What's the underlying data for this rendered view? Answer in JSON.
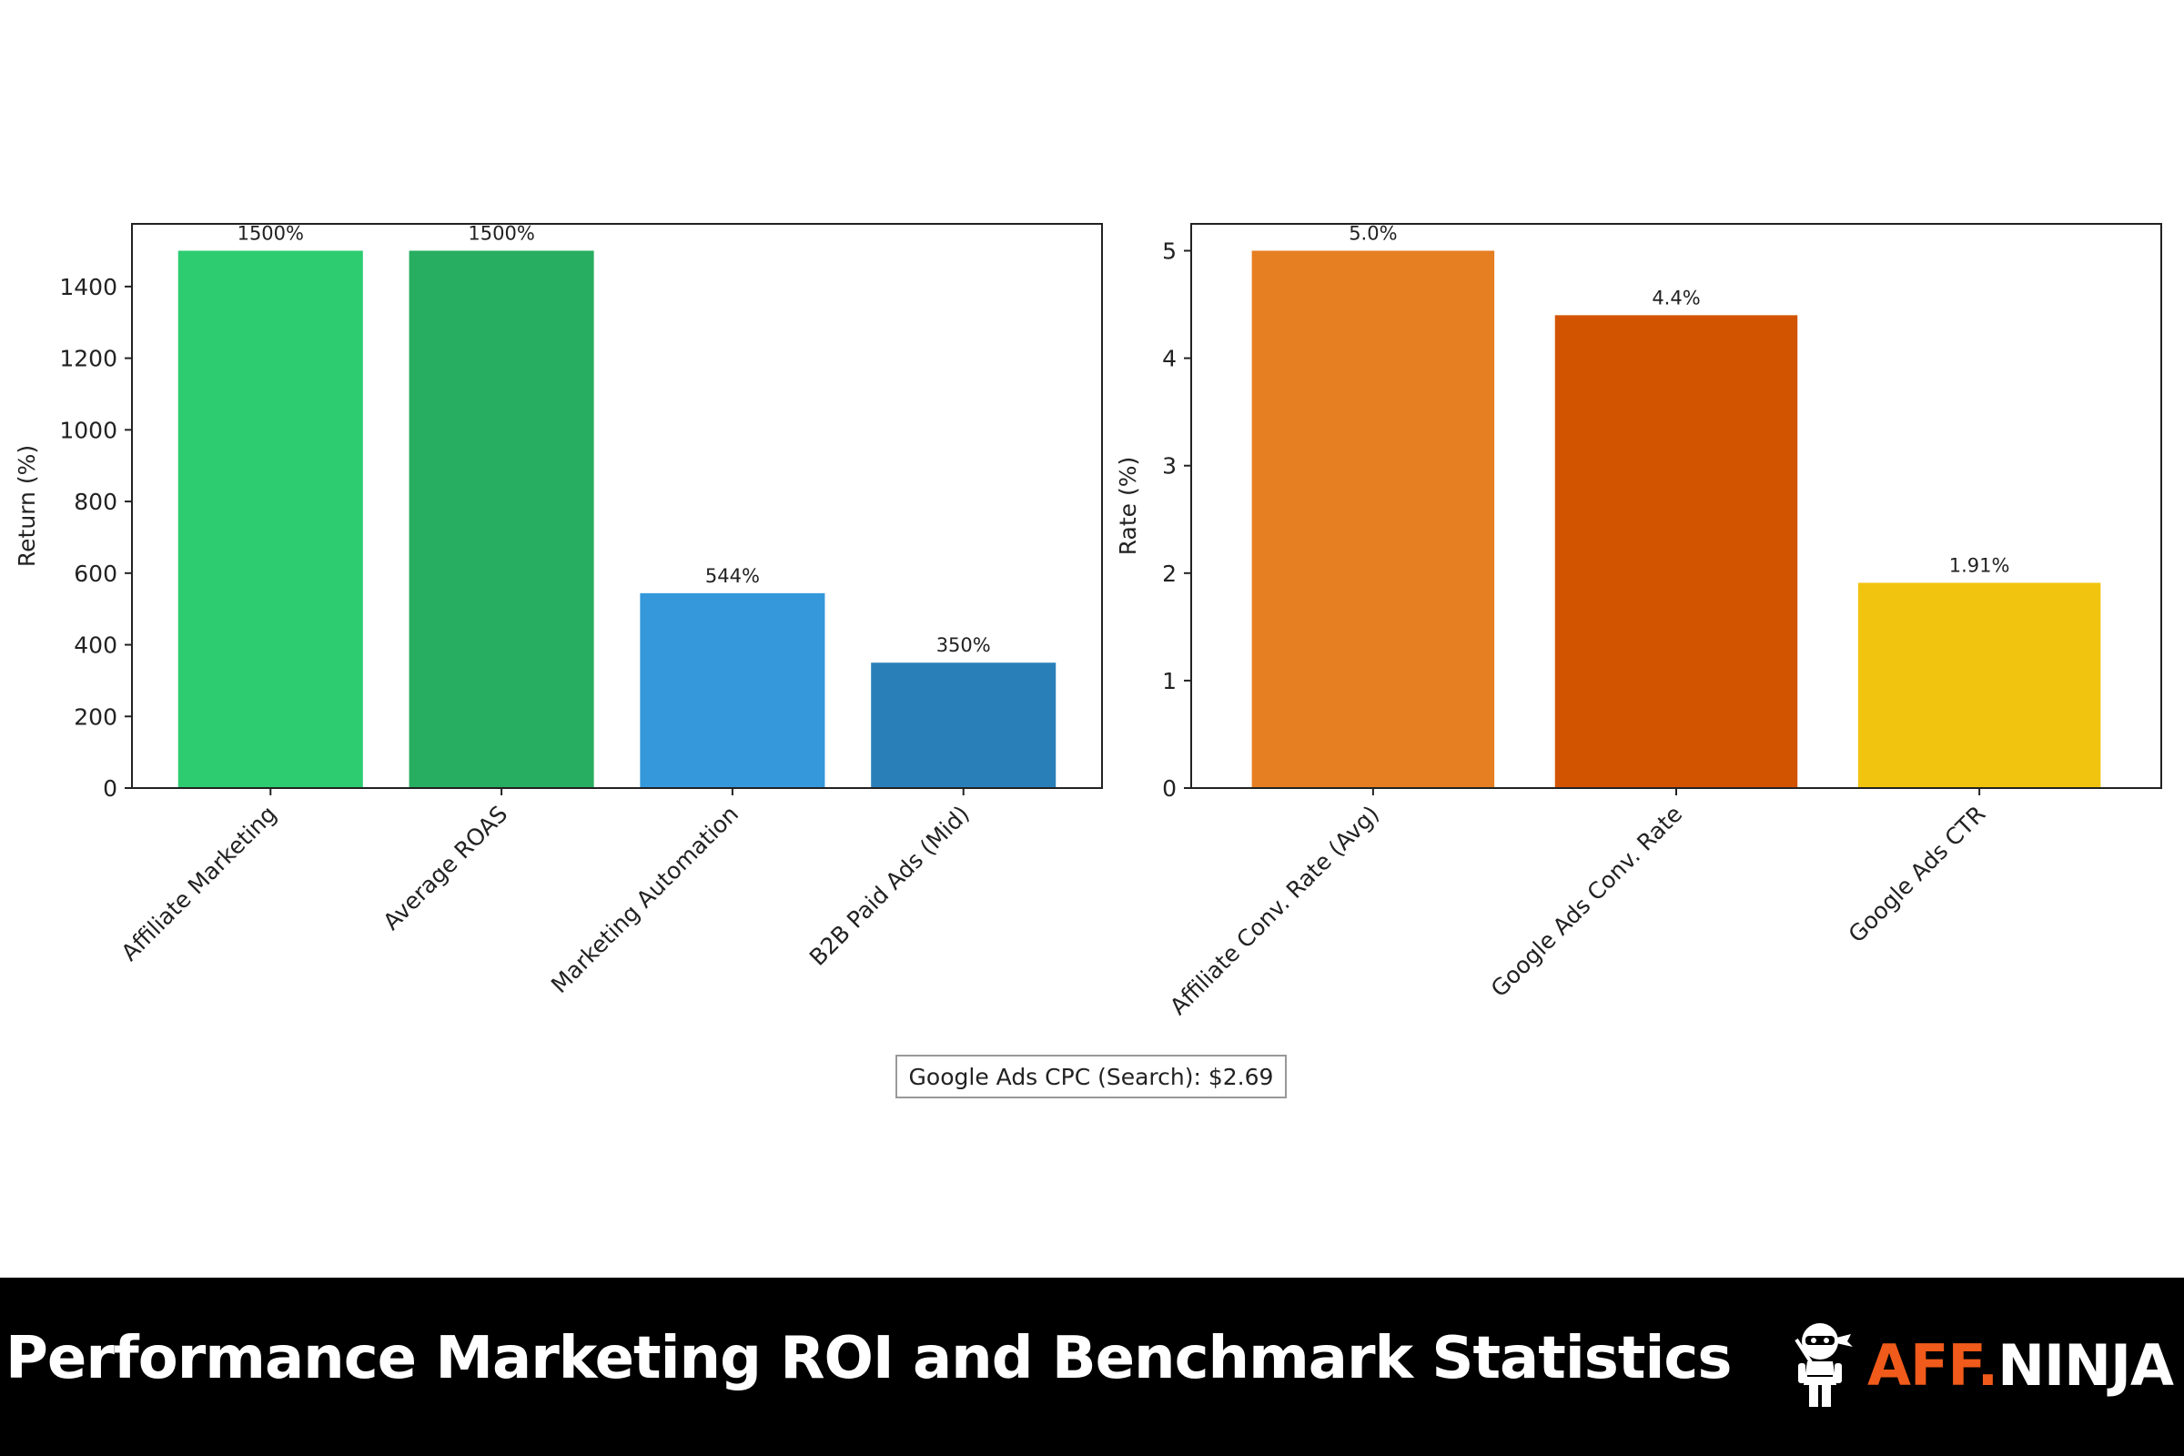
{
  "chart_data": [
    {
      "type": "bar",
      "title": "",
      "xlabel": "",
      "ylabel": "Return (%)",
      "categories": [
        "Affiliate Marketing",
        "Average ROAS",
        "Marketing Automation",
        "B2B Paid Ads (Mid)"
      ],
      "values": [
        1500,
        1500,
        544,
        350
      ],
      "data_labels": [
        "1500%",
        "1500%",
        "544%",
        "350%"
      ],
      "colors": [
        "#2ecc71",
        "#27ae60",
        "#3498db",
        "#2980b9"
      ],
      "ylim": [
        0,
        1575
      ],
      "yticks": [
        0,
        200,
        400,
        600,
        800,
        1000,
        1200,
        1400
      ],
      "grid": false
    },
    {
      "type": "bar",
      "title": "",
      "xlabel": "",
      "ylabel": "Rate (%)",
      "categories": [
        "Affiliate Conv. Rate (Avg)",
        "Google Ads Conv. Rate",
        "Google Ads CTR"
      ],
      "values": [
        5.0,
        4.4,
        1.91
      ],
      "data_labels": [
        "5.0%",
        "4.4%",
        "1.91%"
      ],
      "colors": [
        "#e67e22",
        "#d35400",
        "#f1c40f"
      ],
      "ylim": [
        0,
        5.25
      ],
      "yticks": [
        0,
        1,
        2,
        3,
        4,
        5
      ],
      "grid": false
    }
  ],
  "annotation": "Google Ads CPC (Search): $2.69",
  "footer": {
    "title": "Performance Marketing ROI and Benchmark Statistics",
    "logo_aff": "AFF.",
    "logo_ninja": "NINJA"
  }
}
